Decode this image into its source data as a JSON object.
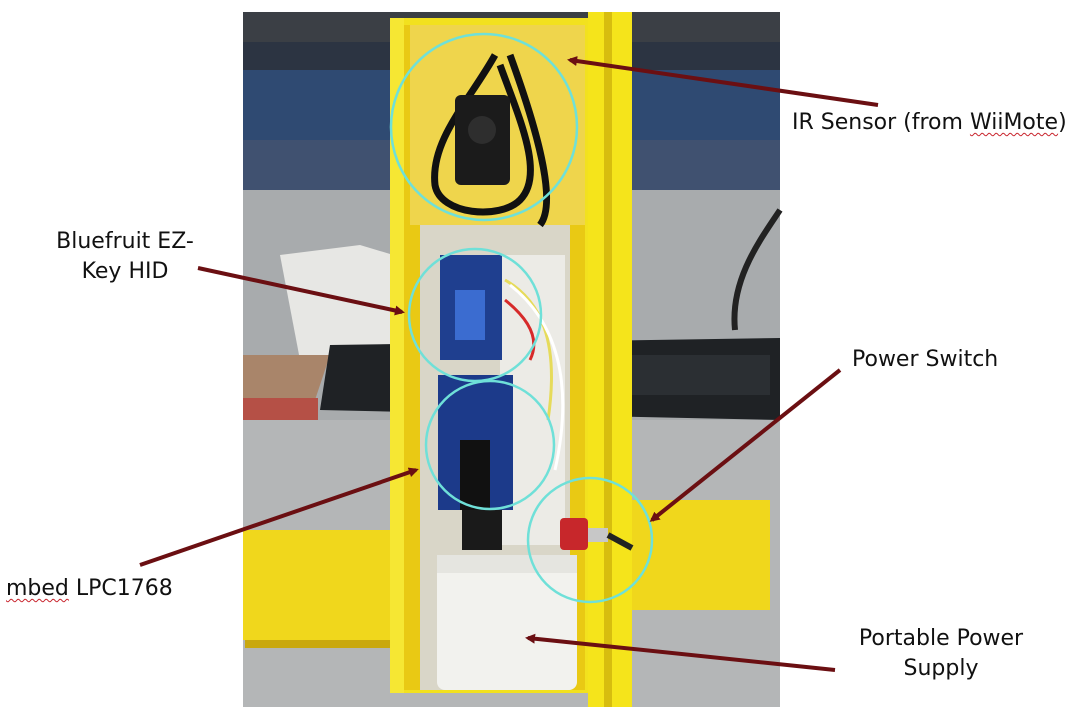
{
  "labels": {
    "ir_sensor": {
      "prefix": "IR Sensor (from ",
      "word": "WiiMote",
      "suffix": ")"
    },
    "bluefruit": {
      "line1": "Bluefruit EZ-",
      "line2": "Key HID"
    },
    "power_switch": "Power Switch",
    "mbed": {
      "word": "mbed",
      "suffix": " LPC1768"
    },
    "power_supply": {
      "line1": "Portable Power",
      "line2": "Supply"
    }
  },
  "colors": {
    "arrow": "#6b0f12",
    "highlight_circle": "#6fe0d8",
    "enclosure": "#f2e11e",
    "spellcheck_underline": "#c8232c"
  }
}
